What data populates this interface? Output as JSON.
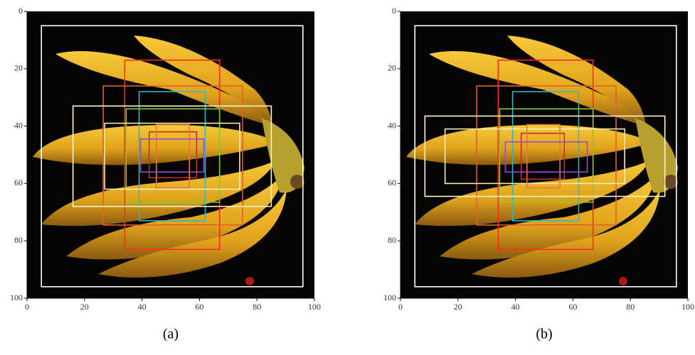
{
  "chart_data": [
    {
      "type": "boxes",
      "caption": "(a)",
      "xlim": [
        0,
        100
      ],
      "ylim": [
        100,
        0
      ],
      "xticks": [
        0,
        20,
        40,
        60,
        80,
        100
      ],
      "yticks": [
        0,
        20,
        40,
        60,
        80,
        100
      ],
      "boxes": [
        {
          "color": "#ffffff",
          "values": [
            5,
            5,
            96,
            96
          ]
        },
        {
          "color": "#ff2a1a",
          "values": [
            34,
            17,
            67,
            83
          ]
        },
        {
          "color": "#e0602a",
          "values": [
            26.5,
            26,
            75,
            74.5
          ]
        },
        {
          "color": "#2ab8c8",
          "values": [
            39,
            28,
            62,
            73
          ]
        },
        {
          "color": "#7ed02a",
          "values": [
            34.5,
            34,
            67,
            66.5
          ]
        },
        {
          "color": "#fff6c8",
          "values": [
            16,
            33,
            85,
            68
          ]
        },
        {
          "color": "#f4eeb0",
          "values": [
            27,
            39,
            74,
            62
          ]
        },
        {
          "color": "#c0302a",
          "values": [
            42.5,
            42,
            59,
            58
          ]
        },
        {
          "color": "#e8783a",
          "values": [
            45,
            39.5,
            56.5,
            61.5
          ]
        },
        {
          "color": "#9a4ad0",
          "values": [
            39.5,
            44.5,
            61.5,
            56
          ]
        }
      ]
    },
    {
      "type": "boxes",
      "caption": "(b)",
      "xlim": [
        0,
        100
      ],
      "ylim": [
        100,
        0
      ],
      "xticks": [
        0,
        20,
        40,
        60,
        80,
        100
      ],
      "yticks": [
        0,
        20,
        40,
        60,
        80,
        100
      ],
      "boxes": [
        {
          "color": "#ffffff",
          "values": [
            5,
            5,
            96,
            96
          ]
        },
        {
          "color": "#ff2a1a",
          "values": [
            34,
            17,
            67,
            83
          ]
        },
        {
          "color": "#e0602a",
          "values": [
            26.5,
            26,
            75,
            74.5
          ]
        },
        {
          "color": "#2ab8c8",
          "values": [
            39,
            28,
            62,
            73
          ]
        },
        {
          "color": "#7ed02a",
          "values": [
            34.5,
            34,
            67,
            66.5
          ]
        },
        {
          "color": "#fff6c8",
          "values": [
            8.5,
            36.5,
            92,
            64.5
          ]
        },
        {
          "color": "#f4eeb0",
          "values": [
            15.5,
            41,
            78,
            60
          ]
        },
        {
          "color": "#c0302a",
          "values": [
            42,
            42.5,
            57,
            58.5
          ]
        },
        {
          "color": "#e8783a",
          "values": [
            44,
            39.5,
            55.5,
            61.5
          ]
        },
        {
          "color": "#9a4ad0",
          "values": [
            36.5,
            45.5,
            65,
            56
          ]
        }
      ]
    }
  ]
}
